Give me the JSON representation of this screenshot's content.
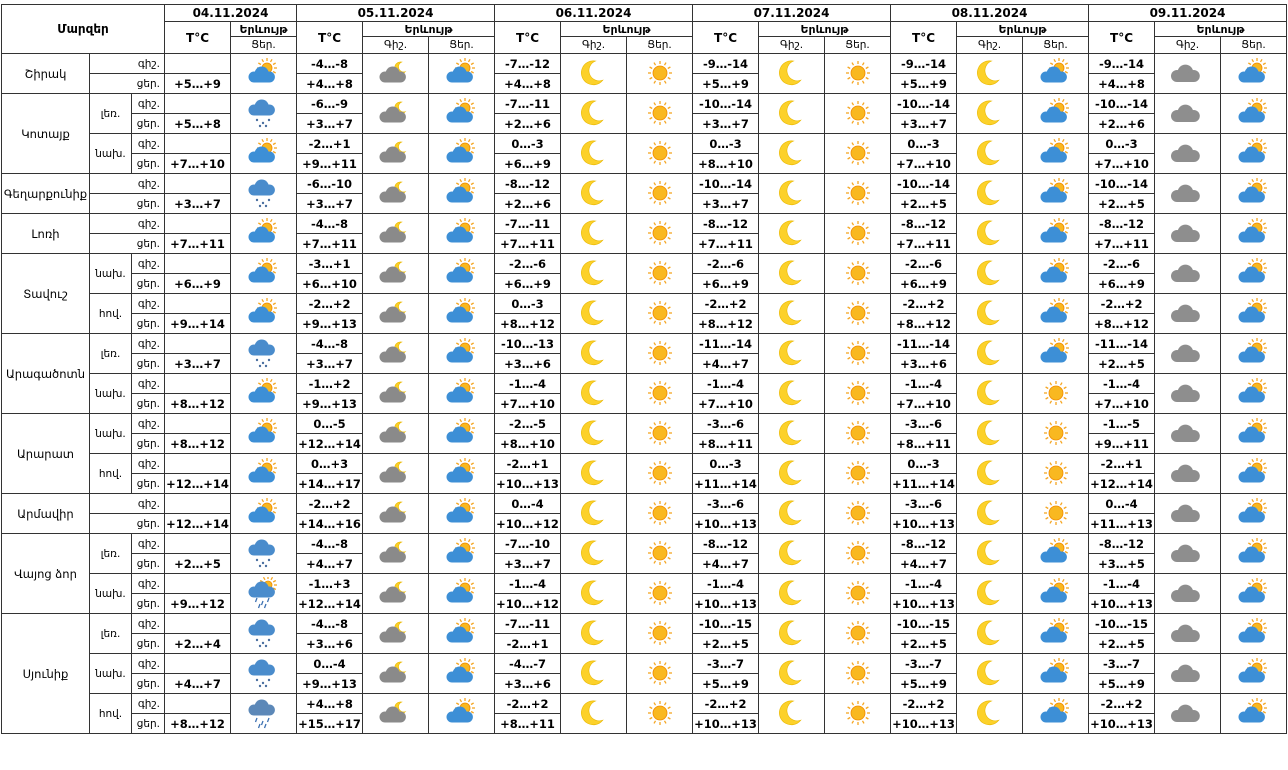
{
  "header": {
    "title": "Մարզեր",
    "dates": [
      "04.11.2024",
      "05.11.2024",
      "06.11.2024",
      "07.11.2024",
      "08.11.2024",
      "09.11.2024"
    ],
    "temp": "T°C",
    "phenomenon": "Երևույթ",
    "night": "Գիշ.",
    "day": "Ցեր."
  },
  "night_label": "գիշ.",
  "day_label": "ցեր.",
  "regions": [
    {
      "name": "Շիրակ",
      "rows": [
        {
          "t04": "+5…+9",
          "t": [
            [
              "-4…-8",
              "+4…+8"
            ],
            [
              "-7…-12",
              "+4…+8"
            ],
            [
              "-9…-14",
              "+5…+9"
            ],
            [
              "-9…-14",
              "+5…+9"
            ],
            [
              "-9…-14",
              "+4…+8"
            ]
          ]
        }
      ]
    },
    {
      "name": "Կոտայք",
      "rows": [
        {
          "zone": "լեռ.",
          "t04": "+5…+8",
          "t": [
            [
              "-6…-9",
              "+3…+7"
            ],
            [
              "-7…-11",
              "+2…+6"
            ],
            [
              "-10…-14",
              "+3…+7"
            ],
            [
              "-10…-14",
              "+3…+7"
            ],
            [
              "-10…-14",
              "+2…+6"
            ]
          ]
        },
        {
          "zone": "նախ.",
          "t04": "+7…+10",
          "t": [
            [
              "-2…+1",
              "+9…+11"
            ],
            [
              "0…-3",
              "+6…+9"
            ],
            [
              "0…-3",
              "+8…+10"
            ],
            [
              "0…-3",
              "+7…+10"
            ],
            [
              "0…-3",
              "+7…+10"
            ]
          ]
        }
      ]
    },
    {
      "name": "Գեղարքունիք",
      "rows": [
        {
          "t04": "+3…+7",
          "t": [
            [
              "-6…-10",
              "+3…+7"
            ],
            [
              "-8…-12",
              "+2…+6"
            ],
            [
              "-10…-14",
              "+3…+7"
            ],
            [
              "-10…-14",
              "+2…+5"
            ],
            [
              "-10…-14",
              "+2…+5"
            ]
          ]
        }
      ]
    },
    {
      "name": "Լոռի",
      "rows": [
        {
          "t04": "+7…+11",
          "t": [
            [
              "-4…-8",
              "+7…+11"
            ],
            [
              "-7…-11",
              "+7…+11"
            ],
            [
              "-8…-12",
              "+7…+11"
            ],
            [
              "-8…-12",
              "+7…+11"
            ],
            [
              "-8…-12",
              "+7…+11"
            ]
          ]
        }
      ]
    },
    {
      "name": "Տավուշ",
      "rows": [
        {
          "zone": "նախ.",
          "t04": "+6…+9",
          "t": [
            [
              "-3…+1",
              "+6…+10"
            ],
            [
              "-2…-6",
              "+6…+9"
            ],
            [
              "-2…-6",
              "+6…+9"
            ],
            [
              "-2…-6",
              "+6…+9"
            ],
            [
              "-2…-6",
              "+6…+9"
            ]
          ]
        },
        {
          "zone": "հով.",
          "t04": "+9…+14",
          "t": [
            [
              "-2…+2",
              "+9…+13"
            ],
            [
              "0…-3",
              "+8…+12"
            ],
            [
              "-2…+2",
              "+8…+12"
            ],
            [
              "-2…+2",
              "+8…+12"
            ],
            [
              "-2…+2",
              "+8…+12"
            ]
          ]
        }
      ]
    },
    {
      "name": "Արագածոտն",
      "rows": [
        {
          "zone": "լեռ.",
          "t04": "+3…+7",
          "t": [
            [
              "-4…-8",
              "+3…+7"
            ],
            [
              "-10…-13",
              "+3…+6"
            ],
            [
              "-11…-14",
              "+4…+7"
            ],
            [
              "-11…-14",
              "+3…+6"
            ],
            [
              "-11…-14",
              "+2…+5"
            ]
          ]
        },
        {
          "zone": "նախ.",
          "t04": "+8…+12",
          "t": [
            [
              "-1…+2",
              "+9…+13"
            ],
            [
              "-1…-4",
              "+7…+10"
            ],
            [
              "-1…-4",
              "+7…+10"
            ],
            [
              "-1…-4",
              "+7…+10"
            ],
            [
              "-1…-4",
              "+7…+10"
            ]
          ]
        }
      ]
    },
    {
      "name": "Արարատ",
      "rows": [
        {
          "zone": "նախ.",
          "t04": "+8…+12",
          "t": [
            [
              "0…-5",
              "+12…+14"
            ],
            [
              "-2…-5",
              "+8…+10"
            ],
            [
              "-3…-6",
              "+8…+11"
            ],
            [
              "-3…-6",
              "+8…+11"
            ],
            [
              "-1…-5",
              "+9…+11"
            ]
          ]
        },
        {
          "zone": "հով.",
          "t04": "+12…+14",
          "t": [
            [
              "0…+3",
              "+14…+17"
            ],
            [
              "-2…+1",
              "+10…+13"
            ],
            [
              "0…-3",
              "+11…+14"
            ],
            [
              "0…-3",
              "+11…+14"
            ],
            [
              "-2…+1",
              "+12…+14"
            ]
          ]
        }
      ]
    },
    {
      "name": "Արմավիր",
      "rows": [
        {
          "t04": "+12…+14",
          "t": [
            [
              "-2…+2",
              "+14…+16"
            ],
            [
              "0…-4",
              "+10…+12"
            ],
            [
              "-3…-6",
              "+10…+13"
            ],
            [
              "-3…-6",
              "+10…+13"
            ],
            [
              "0…-4",
              "+11…+13"
            ]
          ]
        }
      ]
    },
    {
      "name": "Վայոց ձոր",
      "rows": [
        {
          "zone": "լեռ.",
          "t04": "+2…+5",
          "t": [
            [
              "-4…-8",
              "+4…+7"
            ],
            [
              "-7…-10",
              "+3…+7"
            ],
            [
              "-8…-12",
              "+4…+7"
            ],
            [
              "-8…-12",
              "+4…+7"
            ],
            [
              "-8…-12",
              "+3…+5"
            ]
          ]
        },
        {
          "zone": "նախ.",
          "t04": "+9…+12",
          "t": [
            [
              "-1…+3",
              "+12…+14"
            ],
            [
              "-1…-4",
              "+10…+12"
            ],
            [
              "-1…-4",
              "+10…+13"
            ],
            [
              "-1…-4",
              "+10…+13"
            ],
            [
              "-1…-4",
              "+10…+13"
            ]
          ]
        }
      ]
    },
    {
      "name": "Սյունիք",
      "rows": [
        {
          "zone": "լեռ.",
          "t04": "+2…+4",
          "t": [
            [
              "-4…-8",
              "+3…+6"
            ],
            [
              "-7…-11",
              "-2…+1"
            ],
            [
              "-10…-15",
              "+2…+5"
            ],
            [
              "-10…-15",
              "+2…+5"
            ],
            [
              "-10…-15",
              "+2…+5"
            ]
          ]
        },
        {
          "zone": "նախ.",
          "t04": "+4…+7",
          "t": [
            [
              "0…-4",
              "+9…+13"
            ],
            [
              "-4…-7",
              "+3…+6"
            ],
            [
              "-3…-7",
              "+5…+9"
            ],
            [
              "-3…-7",
              "+5…+9"
            ],
            [
              "-3…-7",
              "+5…+9"
            ]
          ]
        },
        {
          "zone": "հով.",
          "t04": "+8…+12",
          "t": [
            [
              "+4…+8",
              "+15…+17"
            ],
            [
              "-2…+2",
              "+8…+11"
            ],
            [
              "-2…+2",
              "+10…+13"
            ],
            [
              "-2…+2",
              "+10…+13"
            ],
            [
              "-2…+2",
              "+10…+13"
            ]
          ]
        }
      ]
    }
  ]
}
